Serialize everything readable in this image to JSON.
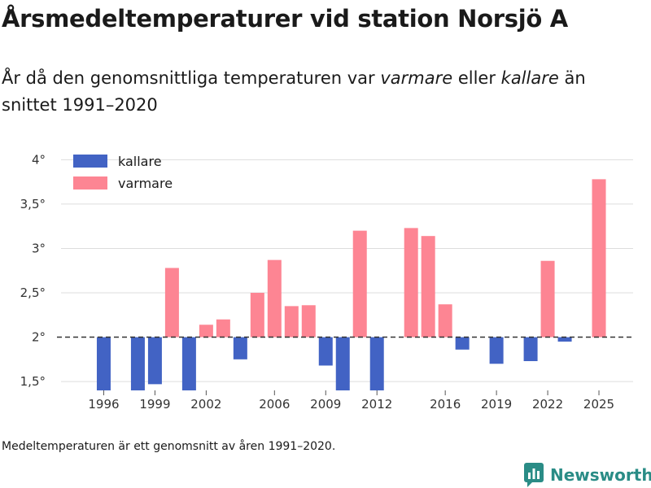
{
  "page": {
    "title": "Årsmedeltemperaturer vid station Norsjö A",
    "subtitle_parts": [
      "År då den genomsnittliga temperaturen var ",
      "varmare",
      " eller ",
      "kallare",
      " än snittet 1991–2020"
    ],
    "footnote": "Medeltemperaturen är ett genomsnitt av åren 1991–2020.",
    "brand": "Newsworthy"
  },
  "colors": {
    "colder": "#4263c4",
    "warmer": "#fd8593",
    "grid": "#dddddd",
    "reference": "#333333",
    "brand": "#2a8c86"
  },
  "chart_data": {
    "type": "bar",
    "title": "Årsmedeltemperaturer vid station Norsjö A",
    "xlabel": "",
    "ylabel": "",
    "baseline": 2.0,
    "ylim": [
      1.4,
      4.15
    ],
    "y_ticks": [
      1.5,
      2,
      2.5,
      3,
      3.5,
      4
    ],
    "y_tick_labels": [
      "1,5°",
      "2°",
      "2,5°",
      "3°",
      "3,5°",
      "4°"
    ],
    "x_ticks": [
      1996,
      1999,
      2002,
      2006,
      2009,
      2012,
      2016,
      2019,
      2022,
      2025
    ],
    "x_tick_labels": [
      "1996",
      "1999",
      "2002",
      "2006",
      "2009",
      "2012",
      "2016",
      "2019",
      "2022",
      "2025"
    ],
    "xlim": [
      1993.5,
      2027
    ],
    "legend_position": "top-left",
    "series": [
      {
        "name": "kallare",
        "key": "colder"
      },
      {
        "name": "varmare",
        "key": "warmer"
      }
    ],
    "points": [
      {
        "year": 1996,
        "value": 1.4
      },
      {
        "year": 1998,
        "value": 1.4
      },
      {
        "year": 1999,
        "value": 1.47
      },
      {
        "year": 2000,
        "value": 2.78
      },
      {
        "year": 2001,
        "value": 1.4
      },
      {
        "year": 2002,
        "value": 2.14
      },
      {
        "year": 2003,
        "value": 2.2
      },
      {
        "year": 2004,
        "value": 1.75
      },
      {
        "year": 2005,
        "value": 2.5
      },
      {
        "year": 2006,
        "value": 2.87
      },
      {
        "year": 2007,
        "value": 2.35
      },
      {
        "year": 2008,
        "value": 2.36
      },
      {
        "year": 2009,
        "value": 1.68
      },
      {
        "year": 2010,
        "value": 1.4
      },
      {
        "year": 2011,
        "value": 3.2
      },
      {
        "year": 2012,
        "value": 1.4
      },
      {
        "year": 2014,
        "value": 3.23
      },
      {
        "year": 2015,
        "value": 3.14
      },
      {
        "year": 2016,
        "value": 2.37
      },
      {
        "year": 2017,
        "value": 1.86
      },
      {
        "year": 2019,
        "value": 1.7
      },
      {
        "year": 2021,
        "value": 1.73
      },
      {
        "year": 2022,
        "value": 2.86
      },
      {
        "year": 2023,
        "value": 1.95
      },
      {
        "year": 2025,
        "value": 3.78
      }
    ]
  }
}
